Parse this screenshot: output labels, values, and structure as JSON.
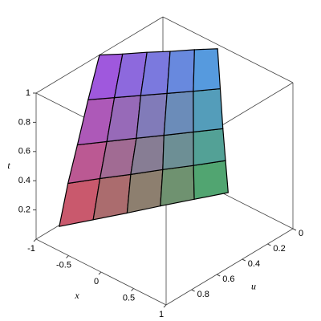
{
  "chart_data": {
    "type": "surface3d",
    "xlabel": "x",
    "ylabel": "u",
    "zlabel": "t",
    "xlim": [
      -1,
      1
    ],
    "ylim": [
      0,
      1
    ],
    "zlim": [
      0,
      1
    ],
    "xticks": [
      -1,
      -0.5,
      0,
      0.5,
      1
    ],
    "yticks": [
      0,
      0.2,
      0.4,
      0.6,
      0.8
    ],
    "zticks": [
      0.2,
      0.4,
      0.6,
      0.8,
      1
    ],
    "colormap": [
      "#e0505a",
      "#a050f0",
      "#4fa0f0",
      "#40b060"
    ],
    "surface": {
      "t": [
        0.1,
        0.3,
        0.5,
        0.75,
        1.0
      ],
      "x": [
        [
          -0.78,
          -0.59,
          -0.4,
          -0.22,
          -0.03,
          0.16
        ],
        [
          -0.9,
          -0.7,
          -0.5,
          -0.3,
          -0.1,
          0.1
        ],
        [
          -0.95,
          -0.75,
          -0.55,
          -0.36,
          -0.16,
          0.04
        ],
        [
          -0.98,
          -0.79,
          -0.6,
          -0.41,
          -0.22,
          -0.03
        ],
        [
          -1,
          -0.82,
          -0.64,
          -0.46,
          -0.28,
          -0.1
        ]
      ],
      "u": [
        [
          0.93,
          0.76,
          0.59,
          0.42,
          0.25,
          0.08
        ],
        [
          0.8,
          0.65,
          0.51,
          0.36,
          0.22,
          0.07
        ],
        [
          0.7,
          0.57,
          0.44,
          0.32,
          0.19,
          0.06
        ],
        [
          0.6,
          0.49,
          0.38,
          0.27,
          0.16,
          0.045
        ],
        [
          0.5,
          0.41,
          0.31,
          0.22,
          0.12,
          0.03
        ]
      ]
    }
  }
}
